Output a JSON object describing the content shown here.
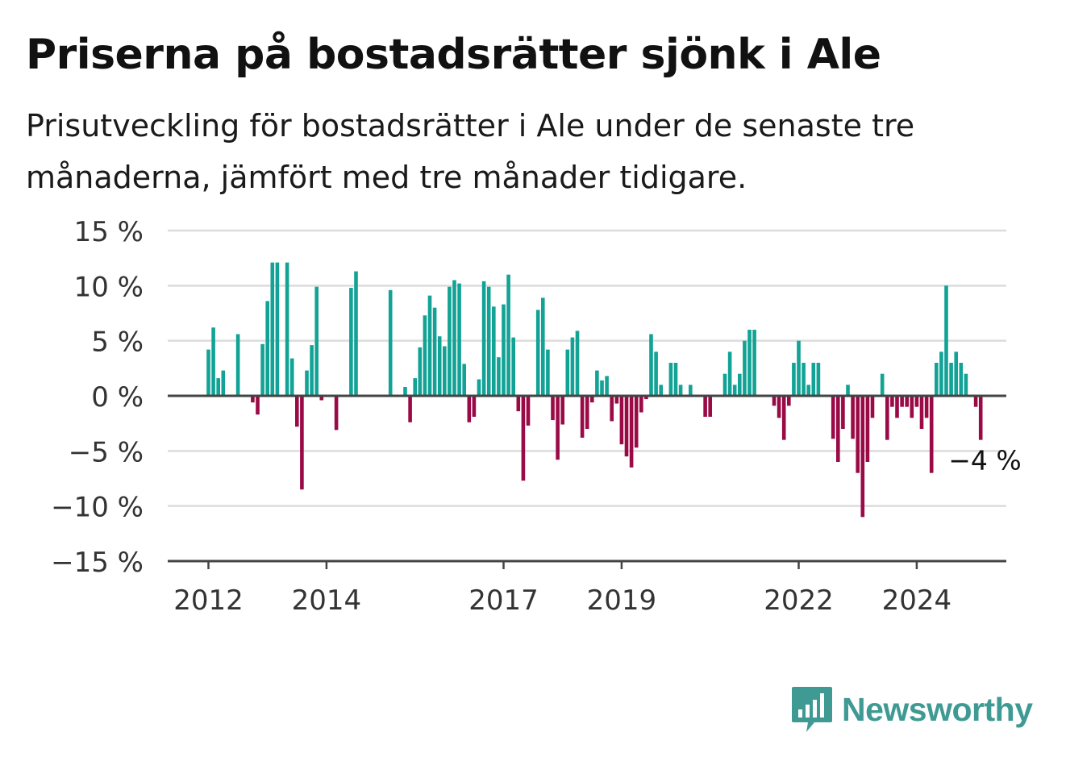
{
  "title": "Priserna på bostadsrätter sjönk i Ale",
  "subtitle": "Prisutveckling för bostadsrätter i Ale under de senaste tre månaderna, jämfört med tre månader tidigare.",
  "logo_text": "Newsworthy",
  "colors": {
    "positive": "#12a396",
    "negative": "#9a0a46",
    "grid": "#dcdcdc",
    "axis": "#444444",
    "logo": "#3f9a93"
  },
  "chart_data": {
    "type": "bar",
    "ylim": [
      -15,
      15
    ],
    "y_ticks": [
      15,
      10,
      5,
      0,
      -5,
      -10,
      -15
    ],
    "y_tick_labels": [
      "15 %",
      "10 %",
      "5 %",
      "0 %",
      "−5 %",
      "−10 %",
      "−15 %"
    ],
    "x_ticks": [
      {
        "label": "2012",
        "index": 0
      },
      {
        "label": "2014",
        "index": 24
      },
      {
        "label": "2017",
        "index": 60
      },
      {
        "label": "2019",
        "index": 84
      },
      {
        "label": "2022",
        "index": 120
      },
      {
        "label": "2024",
        "index": 144
      }
    ],
    "start": "2012-01",
    "frequency": "monthly",
    "values": [
      4.2,
      6.2,
      1.6,
      2.3,
      0,
      0,
      5.6,
      0,
      0,
      -0.6,
      -1.7,
      4.7,
      8.6,
      12.1,
      12.1,
      0,
      12.1,
      3.4,
      -2.8,
      -8.5,
      2.3,
      4.6,
      9.9,
      -0.4,
      0,
      0,
      -3.1,
      0,
      0,
      9.8,
      11.3,
      0,
      0,
      0,
      0,
      0,
      0,
      9.6,
      0,
      0,
      0.8,
      -2.4,
      1.6,
      4.4,
      7.3,
      9.1,
      8.0,
      5.4,
      4.5,
      9.9,
      10.5,
      10.2,
      2.9,
      -2.4,
      -1.9,
      1.5,
      10.4,
      9.9,
      8.1,
      3.5,
      8.3,
      11.0,
      5.3,
      -1.4,
      -7.7,
      -2.7,
      0,
      7.8,
      8.9,
      4.2,
      -2.2,
      -5.8,
      -2.6,
      4.2,
      5.3,
      5.9,
      -3.8,
      -3.0,
      -0.6,
      2.3,
      1.4,
      1.8,
      -2.3,
      -0.7,
      -4.4,
      -5.5,
      -6.5,
      -4.7,
      -1.5,
      -0.3,
      5.6,
      4.0,
      1.0,
      0,
      3.0,
      3.0,
      1.0,
      0,
      1.0,
      0,
      0,
      -1.9,
      -1.9,
      0,
      0,
      2.0,
      4.0,
      1.0,
      2.0,
      5.0,
      6.0,
      6.0,
      0,
      0,
      0,
      -0.9,
      -2.0,
      -4.0,
      -0.9,
      3.0,
      5.0,
      3.0,
      1.0,
      3.0,
      3.0,
      0,
      0,
      -3.9,
      -6.0,
      -3.0,
      1.0,
      -3.9,
      -7.0,
      -11.0,
      -6.0,
      -2.0,
      0,
      2.0,
      -4.0,
      -1.0,
      -2.0,
      -1.0,
      -1.0,
      -2.0,
      -1.0,
      -3.0,
      -2.0,
      -7.0,
      3.0,
      4.0,
      10.0,
      3.0,
      4.0,
      3.0,
      2.0,
      0,
      -1.0,
      -4.0
    ],
    "last_value_label": "−4 %"
  }
}
